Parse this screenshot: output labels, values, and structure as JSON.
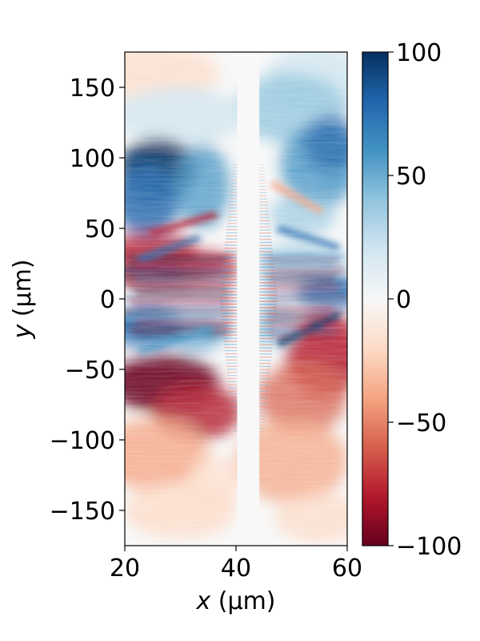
{
  "chart_data": {
    "type": "heatmap",
    "title": "",
    "xlabel": "x (μm)",
    "ylabel": "y (μm)",
    "xlabel_var": "x",
    "xlabel_unit": " (μm)",
    "ylabel_var": "y",
    "ylabel_unit": " (μm)",
    "xlim": [
      20,
      60
    ],
    "ylim": [
      -175,
      175
    ],
    "x_ticks": [
      20,
      40,
      60
    ],
    "x_tick_labels": [
      "20",
      "40",
      "60"
    ],
    "y_ticks": [
      150,
      100,
      50,
      0,
      -50,
      -100,
      -150
    ],
    "y_tick_labels": [
      "150",
      "100",
      "50",
      "0",
      "−50",
      "−100",
      "−150"
    ],
    "colorbar": {
      "colormap": "RdBu",
      "range": [
        -100,
        100
      ],
      "ticks": [
        100,
        50,
        0,
        -50,
        -100
      ],
      "tick_labels": [
        "100",
        "50",
        "0",
        "−50",
        "−100"
      ]
    },
    "colors": {
      "positive": "#053061",
      "negative": "#67001f",
      "zero": "#f7f7f7"
    },
    "grid": false,
    "notes_visible": [
      "Central vertical band near x ≈ 41–44 μm is near zero",
      "Strong positive region upper-left (x 20–30, y 50–110)",
      "Strong negative region lower-left (x 20–35, y −40 to −90)",
      "Alternating stripes near y ≈ 0"
    ]
  }
}
